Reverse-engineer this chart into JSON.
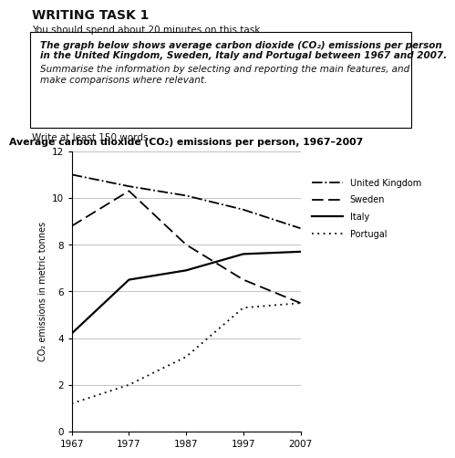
{
  "title": "Average carbon dioxide (CO₂) emissions per person, 1967–2007",
  "ylabel": "CO₂ emissions in metric tonnes",
  "years": [
    1967,
    1977,
    1987,
    1997,
    2007
  ],
  "uk": [
    11.0,
    10.5,
    10.1,
    9.5,
    8.7
  ],
  "sweden": [
    8.8,
    10.3,
    8.0,
    6.5,
    5.5
  ],
  "italy": [
    4.2,
    6.5,
    6.9,
    7.6,
    7.7
  ],
  "portugal": [
    1.2,
    2.0,
    3.2,
    5.3,
    5.5
  ],
  "xlim": [
    1967,
    2007
  ],
  "ylim": [
    0,
    12
  ],
  "yticks": [
    0,
    2,
    4,
    6,
    8,
    10,
    12
  ],
  "xticks": [
    1967,
    1977,
    1987,
    1997,
    2007
  ],
  "legend_labels": [
    "United Kingdom",
    "Sweden",
    "Italy",
    "Portugal"
  ],
  "heading": "WRITING TASK 1",
  "subheading": "You should spend about 20 minutes on this task.",
  "box_line1": "The graph below shows average carbon dioxide (CO₂) emissions per person",
  "box_line2": "in the United Kingdom, Sweden, Italy and Portugal between 1967 and 2007.",
  "box_line3": "Summarise the information by selecting and reporting the main features, and",
  "box_line4": "make comparisons where relevant.",
  "below_box": "Write at least 150 words.",
  "bg_color": "#ffffff",
  "grid_color": "#aaaaaa",
  "line_color": "black",
  "text_color": "#111111"
}
